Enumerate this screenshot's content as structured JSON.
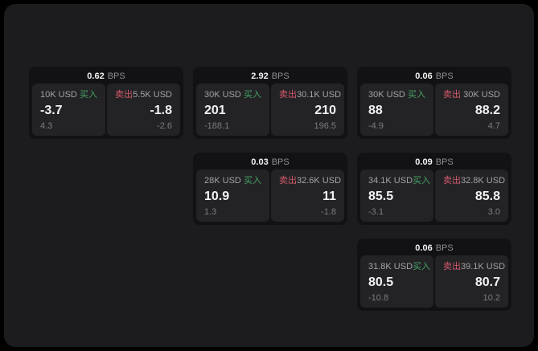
{
  "labels": {
    "bps": "BPS",
    "buy": "买入",
    "sell": "卖出"
  },
  "colors": {
    "page_bg": "#000000",
    "panel_bg": "#1c1c1e",
    "card_bg": "#121214",
    "tile_bg": "#232326",
    "buy_green": "#46a262",
    "sell_red": "#d4596a",
    "value_white": "#f2f2f3",
    "label_gray": "#a3a3a6",
    "muted_gray": "#8e8e93",
    "dim_gray": "#7c7c80"
  },
  "cards": [
    {
      "bps": "0.62",
      "grid": {
        "row": 1,
        "col": 1
      },
      "buy": {
        "size": "10K USD",
        "price": "-3.7",
        "change": "4.3"
      },
      "sell": {
        "size": "5.5K USD",
        "price": "-1.8",
        "change": "-2.6"
      }
    },
    {
      "bps": "2.92",
      "grid": {
        "row": 1,
        "col": 2
      },
      "buy": {
        "size": "30K USD",
        "price": "201",
        "change": "-188.1"
      },
      "sell": {
        "size": "30.1K USD",
        "price": "210",
        "change": "196.5"
      }
    },
    {
      "bps": "0.06",
      "grid": {
        "row": 1,
        "col": 3
      },
      "buy": {
        "size": "30K USD",
        "price": "88",
        "change": "-4.9"
      },
      "sell": {
        "size": "30K USD",
        "price": "88.2",
        "change": "4.7"
      }
    },
    {
      "bps": "0.03",
      "grid": {
        "row": 2,
        "col": 2
      },
      "buy": {
        "size": "28K USD",
        "price": "10.9",
        "change": "1.3"
      },
      "sell": {
        "size": "32.6K USD",
        "price": "11",
        "change": "-1.8"
      }
    },
    {
      "bps": "0.09",
      "grid": {
        "row": 2,
        "col": 3
      },
      "buy": {
        "size": "34.1K USD",
        "price": "85.5",
        "change": "-3.1"
      },
      "sell": {
        "size": "32.8K USD",
        "price": "85.8",
        "change": "3.0"
      }
    },
    {
      "bps": "0.06",
      "grid": {
        "row": 3,
        "col": 3
      },
      "buy": {
        "size": "31.8K USD",
        "price": "80.5",
        "change": "-10.8"
      },
      "sell": {
        "size": "39.1K USD",
        "price": "80.7",
        "change": "10.2"
      }
    }
  ]
}
